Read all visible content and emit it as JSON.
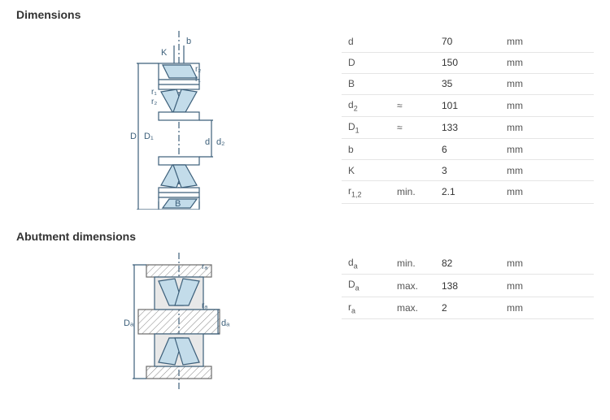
{
  "dimensions": {
    "title": "Dimensions",
    "rows": [
      {
        "symbol": "d",
        "qual": "",
        "value": "70",
        "unit": "mm"
      },
      {
        "symbol": "D",
        "qual": "",
        "value": "150",
        "unit": "mm"
      },
      {
        "symbol": "B",
        "qual": "",
        "value": "35",
        "unit": "mm"
      },
      {
        "symbol_html": "d<sub>2</sub>",
        "qual": "≈",
        "value": "101",
        "unit": "mm"
      },
      {
        "symbol_html": "D<sub>1</sub>",
        "qual": "≈",
        "value": "133",
        "unit": "mm"
      },
      {
        "symbol": "b",
        "qual": "",
        "value": "6",
        "unit": "mm"
      },
      {
        "symbol": "K",
        "qual": "",
        "value": "3",
        "unit": "mm"
      },
      {
        "symbol_html": "r<sub>1,2</sub>",
        "qual": "min.",
        "value": "2.1",
        "unit": "mm"
      }
    ]
  },
  "abutment": {
    "title": "Abutment dimensions",
    "rows": [
      {
        "symbol_html": "d<sub>a</sub>",
        "qual": "min.",
        "value": "82",
        "unit": "mm"
      },
      {
        "symbol_html": "D<sub>a</sub>",
        "qual": "max.",
        "value": "138",
        "unit": "mm"
      },
      {
        "symbol_html": "r<sub>a</sub>",
        "qual": "max.",
        "value": "2",
        "unit": "mm"
      }
    ]
  },
  "diagram": {
    "roller_fill": "#c3dcea",
    "stroke": "#3c5f7a",
    "hatch_fill": "#b8b8b8",
    "stroke_width": 1.2,
    "labels": {
      "D": "D",
      "D1": "D₁",
      "d": "d",
      "d2": "d₂",
      "B": "B",
      "b": "b",
      "K": "K",
      "r1": "r₁",
      "r2": "r₂",
      "Da": "Dₐ",
      "da": "dₐ",
      "ra": "rₐ"
    }
  }
}
